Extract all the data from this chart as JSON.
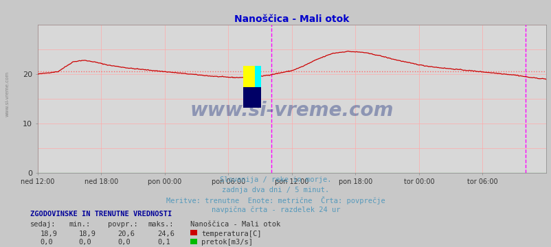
{
  "title": "Nanoščica - Mali otok",
  "title_color": "#0000cc",
  "bg_color": "#c8c8c8",
  "plot_bg_color": "#d8d8d8",
  "grid_h_color": "#ffaaaa",
  "grid_v_color": "#ffaaaa",
  "x_labels": [
    "ned 12:00",
    "ned 18:00",
    "pon 00:00",
    "pon 06:00",
    "pon 12:00",
    "pon 18:00",
    "tor 00:00",
    "tor 06:00"
  ],
  "y_ticks": [
    0,
    10,
    20
  ],
  "ylim": [
    0,
    30
  ],
  "xlim": [
    0,
    576
  ],
  "line_color": "#cc0000",
  "avg_line_color": "#ff6666",
  "avg_value": 20.6,
  "vline1_x": 264,
  "vline2_x": 552,
  "vline_color": "#ff00ff",
  "watermark_text": "www.si-vreme.com",
  "watermark_color": "#334488",
  "watermark_alpha": 0.45,
  "subtitle_lines": [
    "Slovenija / reke in morje.",
    "zadnja dva dni / 5 minut.",
    "Meritve: trenutne  Enote: metrične  Črta: povprečje",
    "navpična črta - razdelek 24 ur"
  ],
  "subtitle_color": "#5599bb",
  "table_header": "ZGODOVINSKE IN TRENUTNE VREDNOSTI",
  "table_header_color": "#000099",
  "col_headers": [
    "sedaj:",
    "min.:",
    "povpr.:",
    "maks.:",
    "Nanoščica - Mali otok"
  ],
  "row1_vals": [
    "18,9",
    "18,9",
    "20,6",
    "24,6"
  ],
  "row1_label": "temperatura[C]",
  "row2_vals": [
    "0,0",
    "0,0",
    "0,0",
    "0,1"
  ],
  "row2_label": "pretok[m3/s]",
  "temp_color": "#cc0000",
  "flow_color": "#00bb00",
  "left_label": "www.si-vreme.com",
  "keypoints_t": [
    0.0,
    0.04,
    0.07,
    0.09,
    0.11,
    0.14,
    0.18,
    0.22,
    0.27,
    0.31,
    0.34,
    0.37,
    0.39,
    0.41,
    0.435,
    0.46,
    0.485,
    0.5,
    0.52,
    0.55,
    0.58,
    0.61,
    0.64,
    0.67,
    0.7,
    0.73,
    0.76,
    0.79,
    0.82,
    0.85,
    0.88,
    0.91,
    0.94,
    0.97,
    1.0
  ],
  "keypoints_v": [
    20.0,
    20.5,
    22.5,
    22.8,
    22.5,
    21.8,
    21.2,
    20.8,
    20.3,
    19.9,
    19.6,
    19.4,
    19.3,
    19.35,
    19.5,
    19.9,
    20.4,
    20.7,
    21.5,
    23.0,
    24.2,
    24.6,
    24.4,
    23.8,
    23.0,
    22.3,
    21.7,
    21.3,
    21.0,
    20.7,
    20.4,
    20.1,
    19.8,
    19.3,
    19.0
  ]
}
